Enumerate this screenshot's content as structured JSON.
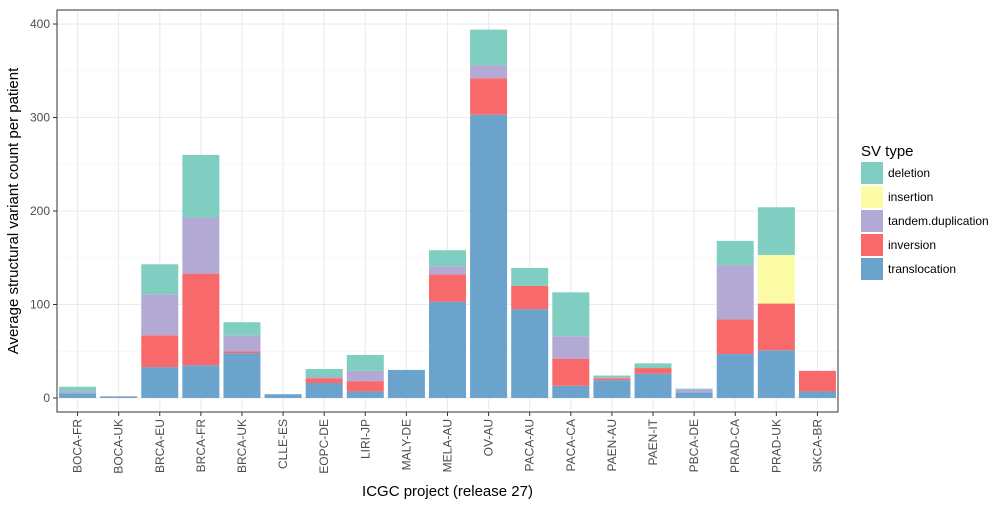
{
  "chart_data": {
    "type": "bar",
    "stacked": true,
    "title": "",
    "xlabel": "ICGC project (release 27)",
    "ylabel": "Average structural variant count per patient",
    "ylim": [
      -15,
      415
    ],
    "yticks": [
      0,
      100,
      200,
      300,
      400
    ],
    "grid": true,
    "legend_title": "SV type",
    "legend_position": "right",
    "categories": [
      "BOCA-FR",
      "BOCA-UK",
      "BRCA-EU",
      "BRCA-FR",
      "BRCA-UK",
      "CLLE-ES",
      "EOPC-DE",
      "LIRI-JP",
      "MALY-DE",
      "MELA-AU",
      "OV-AU",
      "PACA-AU",
      "PACA-CA",
      "PAEN-AU",
      "PAEN-IT",
      "PBCA-DE",
      "PRAD-CA",
      "PRAD-UK",
      "SKCA-BR"
    ],
    "series": [
      {
        "name": "translocation",
        "color": "#6BA3CC",
        "values": [
          5,
          1,
          33,
          35,
          48,
          4,
          16,
          7,
          30,
          103,
          303,
          95,
          13,
          19,
          26,
          6,
          47,
          51,
          7
        ]
      },
      {
        "name": "inversion",
        "color": "#F8696B",
        "values": [
          0,
          0,
          34,
          98,
          2,
          0,
          5,
          11,
          0,
          29,
          39,
          25,
          29,
          2,
          6,
          0,
          37,
          50,
          22
        ]
      },
      {
        "name": "tandem.duplication",
        "color": "#B3A9D5",
        "values": [
          2,
          1,
          44,
          60,
          17,
          0,
          2,
          11,
          0,
          9,
          14,
          0,
          24,
          1,
          0,
          3,
          58,
          0,
          0
        ]
      },
      {
        "name": "insertion",
        "color": "#FDFCA6",
        "values": [
          0,
          0,
          0,
          0,
          0,
          0,
          0,
          0,
          0,
          0,
          0,
          0,
          0,
          0,
          0,
          0,
          0,
          52,
          0
        ]
      },
      {
        "name": "deletion",
        "color": "#80CDC1",
        "values": [
          5,
          0,
          32,
          67,
          14,
          0,
          8,
          17,
          0,
          17,
          38,
          19,
          47,
          2,
          5,
          1,
          26,
          51,
          0
        ]
      }
    ],
    "legend_order": [
      "deletion",
      "insertion",
      "tandem.duplication",
      "inversion",
      "translocation"
    ]
  }
}
